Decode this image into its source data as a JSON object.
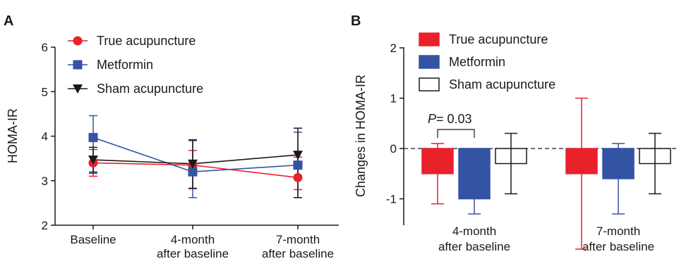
{
  "chart_data": [
    {
      "panel": "A",
      "type": "line",
      "ylabel": "HOMA-IR",
      "xlabel": "",
      "ylim": [
        2,
        6
      ],
      "yticks": [
        "2",
        "3",
        "4",
        "5",
        "6"
      ],
      "categories": [
        [
          "Baseline"
        ],
        [
          "4-month",
          "after baseline"
        ],
        [
          "7-month",
          "after baseline"
        ]
      ],
      "series": [
        {
          "name": "True acupuncture",
          "color": "#e8212b",
          "marker": "circle",
          "values": [
            3.4,
            3.35,
            3.07
          ],
          "err_hi": [
            3.7,
            3.68,
            3.53
          ],
          "err_lo": [
            3.1,
            2.82,
            2.8
          ]
        },
        {
          "name": "Metformin",
          "color": "#3553a4",
          "marker": "square",
          "values": [
            3.97,
            3.2,
            3.35
          ],
          "err_hi": [
            4.46,
            3.9,
            4.09
          ],
          "err_lo": [
            3.2,
            2.62,
            2.62
          ]
        },
        {
          "name": "Sham acupuncture",
          "color": "#1a1a1a",
          "marker": "triangle-down",
          "values": [
            3.47,
            3.38,
            3.58
          ],
          "err_hi": [
            3.75,
            3.92,
            4.18
          ],
          "err_lo": [
            3.17,
            2.83,
            2.62
          ]
        }
      ],
      "legend_position": "top-left",
      "grid": false
    },
    {
      "panel": "B",
      "type": "bar",
      "ylabel": "Changes in HOMA-IR",
      "xlabel": "",
      "ylim": [
        -1.5,
        2
      ],
      "yticks": [
        "-1",
        "0",
        "1",
        "2"
      ],
      "categories": [
        [
          "4-month",
          "after baseline"
        ],
        [
          "7-month",
          "after baseline"
        ]
      ],
      "series": [
        {
          "name": "True acupuncture",
          "fill": "#e8212b",
          "stroke": "#e8212b",
          "values": [
            -0.5,
            -0.5
          ],
          "err": [
            0.6,
            1.5
          ]
        },
        {
          "name": "Metformin",
          "fill": "#3553a4",
          "stroke": "#3553a4",
          "values": [
            -1.0,
            -0.6
          ],
          "err": [
            0.3,
            0.7
          ]
        },
        {
          "name": "Sham acupuncture",
          "fill": "#ffffff",
          "stroke": "#1a1a1a",
          "values": [
            -0.3,
            -0.3
          ],
          "err": [
            0.6,
            0.6
          ]
        }
      ],
      "annotation": {
        "p_letter": "P",
        "p_rest": "= 0.03"
      },
      "legend_position": "top-left",
      "reference_line": "dashed at 0",
      "grid": false
    }
  ],
  "panels": {
    "a_label": "A",
    "b_label": "B"
  }
}
